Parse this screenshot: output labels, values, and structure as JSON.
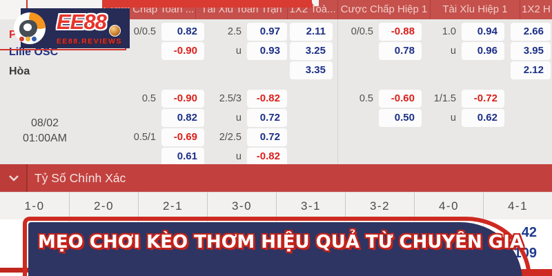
{
  "brand": {
    "name": "EE88",
    "tagline": "EE88.REVIEWS"
  },
  "match": {
    "home_team": "Pa",
    "away_team": "Lille OSC",
    "draw_label": "Hòa",
    "date": "08/02",
    "time": "01:00AM"
  },
  "odds_table": {
    "headers": [
      "Cược Chấp Toàn ...",
      "Tài Xỉu Toàn Trận",
      "1X2 Toà...",
      "Cược Chấp Hiệp 1",
      "Tài Xỉu Hiệp 1",
      "1X2 H"
    ],
    "rows": [
      [
        {
          "c": 0,
          "t": "0/0.5",
          "k": "lbl"
        },
        {
          "c": 1,
          "t": "0.82",
          "k": "b"
        },
        {
          "c": 2,
          "t": "2.5",
          "k": "lbl"
        },
        {
          "c": 3,
          "t": "0.97",
          "k": "b"
        },
        {
          "c": 4,
          "t": "2.11",
          "k": "b"
        },
        {
          "c": 5,
          "t": "0/0.5",
          "k": "lbl"
        },
        {
          "c": 6,
          "t": "-0.88",
          "k": "r"
        },
        {
          "c": 7,
          "t": "1.0",
          "k": "lbl"
        },
        {
          "c": 8,
          "t": "0.94",
          "k": "b"
        },
        {
          "c": 9,
          "t": "2.66",
          "k": "b"
        }
      ],
      [
        {
          "c": 1,
          "t": "-0.90",
          "k": "r"
        },
        {
          "c": 2,
          "t": "u",
          "k": "lbl"
        },
        {
          "c": 3,
          "t": "0.93",
          "k": "b"
        },
        {
          "c": 4,
          "t": "3.25",
          "k": "b"
        },
        {
          "c": 6,
          "t": "0.78",
          "k": "b"
        },
        {
          "c": 7,
          "t": "u",
          "k": "lbl"
        },
        {
          "c": 8,
          "t": "0.96",
          "k": "b"
        },
        {
          "c": 9,
          "t": "3.95",
          "k": "b"
        }
      ],
      [
        {
          "c": 4,
          "t": "3.35",
          "k": "b"
        },
        {
          "c": 9,
          "t": "2.12",
          "k": "b"
        }
      ],
      [
        {
          "c": 0,
          "t": "0.5",
          "k": "lbl"
        },
        {
          "c": 1,
          "t": "-0.90",
          "k": "r"
        },
        {
          "c": 2,
          "t": "2.5/3",
          "k": "lbl"
        },
        {
          "c": 3,
          "t": "-0.82",
          "k": "r"
        },
        {
          "c": 5,
          "t": "0.5",
          "k": "lbl"
        },
        {
          "c": 6,
          "t": "-0.60",
          "k": "r"
        },
        {
          "c": 7,
          "t": "1/1.5",
          "k": "lbl"
        },
        {
          "c": 8,
          "t": "-0.72",
          "k": "r"
        }
      ],
      [
        {
          "c": 1,
          "t": "0.82",
          "k": "b"
        },
        {
          "c": 2,
          "t": "u",
          "k": "lbl"
        },
        {
          "c": 3,
          "t": "0.72",
          "k": "b"
        },
        {
          "c": 6,
          "t": "0.50",
          "k": "b"
        },
        {
          "c": 7,
          "t": "u",
          "k": "lbl"
        },
        {
          "c": 8,
          "t": "0.62",
          "k": "b"
        }
      ],
      [
        {
          "c": 0,
          "t": "0.5/1",
          "k": "lbl"
        },
        {
          "c": 1,
          "t": "-0.69",
          "k": "r"
        },
        {
          "c": 2,
          "t": "2/2.5",
          "k": "lbl"
        },
        {
          "c": 3,
          "t": "0.72",
          "k": "b"
        }
      ],
      [
        {
          "c": 1,
          "t": "0.61",
          "k": "b"
        },
        {
          "c": 2,
          "t": "u",
          "k": "lbl"
        },
        {
          "c": 3,
          "t": "-0.82",
          "k": "r"
        }
      ]
    ]
  },
  "score_section": {
    "title": "Tỷ Số Chính Xác",
    "scores": [
      "1-0",
      "2-0",
      "2-1",
      "3-0",
      "3-1",
      "3-2",
      "4-0",
      "4-1"
    ],
    "counts": [
      "42",
      "109"
    ]
  },
  "banner": {
    "text": "MẸO CHƠI KÈO THƠM HIỆU QUẢ TỪ CHUYÊN GIA"
  },
  "colors": {
    "header_red": "#c5504c",
    "bright_red": "#d93a31",
    "section_red": "#c2413e",
    "banner_navy": "#2f3562",
    "banner_border_red": "#ce2a21",
    "odds_blue": "#1c2f87",
    "odds_red": "#dc1f1a"
  }
}
